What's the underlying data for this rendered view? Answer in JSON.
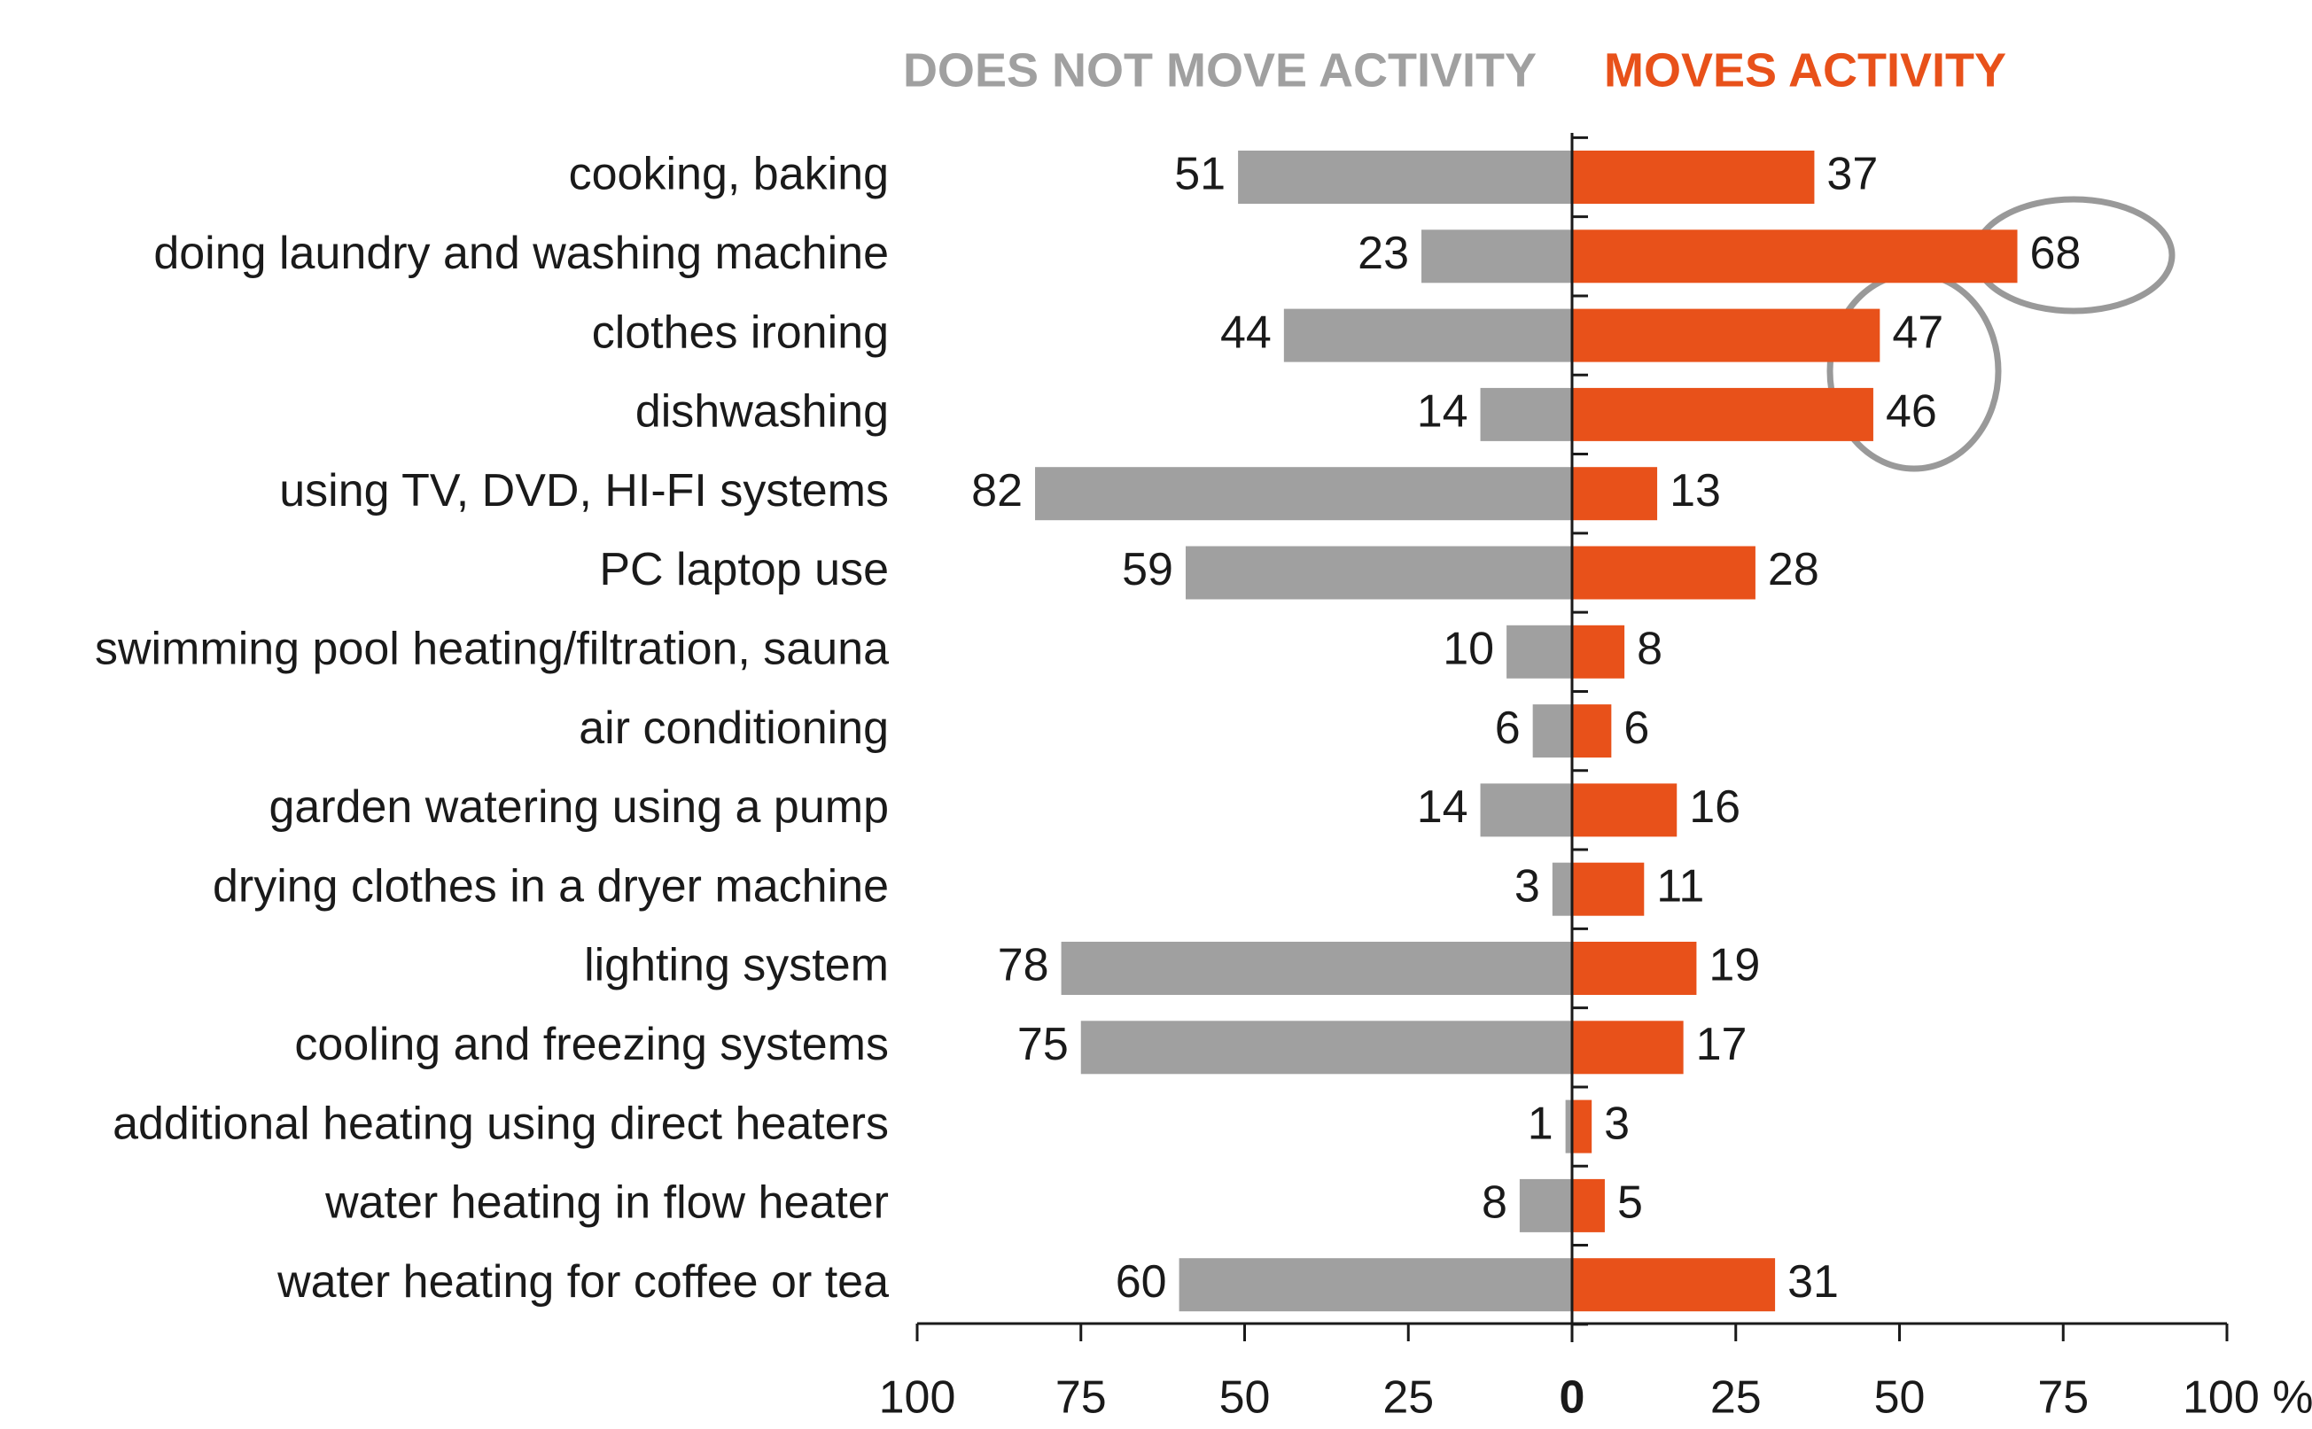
{
  "chart_data": {
    "type": "diverging-bar",
    "categories": [
      "cooking, baking",
      "doing laundry and washing machine",
      "clothes ironing",
      "dishwashing",
      "using TV, DVD, HI-FI systems",
      "PC laptop use",
      "swimming pool heating/filtration, sauna",
      "air conditioning",
      "garden watering using a pump",
      "drying clothes in a dryer machine",
      "lighting system",
      "cooling and freezing systems",
      "additional heating using direct heaters",
      "water heating in flow heater",
      "water heating for coffee or tea"
    ],
    "series": [
      {
        "name": "DOES NOT MOVE ACTIVITY",
        "color": "#a0a0a0",
        "values": [
          -51,
          -23,
          -44,
          -14,
          -82,
          -59,
          -10,
          -6,
          -14,
          -3,
          -78,
          -75,
          -1,
          -8,
          -60
        ],
        "value_labels": [
          "51",
          "23",
          "44",
          "14",
          "82",
          "59",
          "10",
          "6",
          "14",
          "3",
          "78",
          "75",
          "1",
          "8",
          "60"
        ]
      },
      {
        "name": "MOVES ACTIVITY",
        "color": "#e8511a",
        "values": [
          37,
          68,
          47,
          46,
          13,
          28,
          8,
          6,
          16,
          11,
          19,
          17,
          3,
          5,
          31
        ]
      }
    ],
    "xlim": [
      -100,
      100
    ],
    "xticks": [
      {
        "value": -100,
        "label": "100"
      },
      {
        "value": -75,
        "label": "75"
      },
      {
        "value": -50,
        "label": "50"
      },
      {
        "value": -25,
        "label": "25"
      },
      0,
      25,
      50,
      75,
      {
        "value": 100,
        "label": "100 %"
      }
    ]
  }
}
